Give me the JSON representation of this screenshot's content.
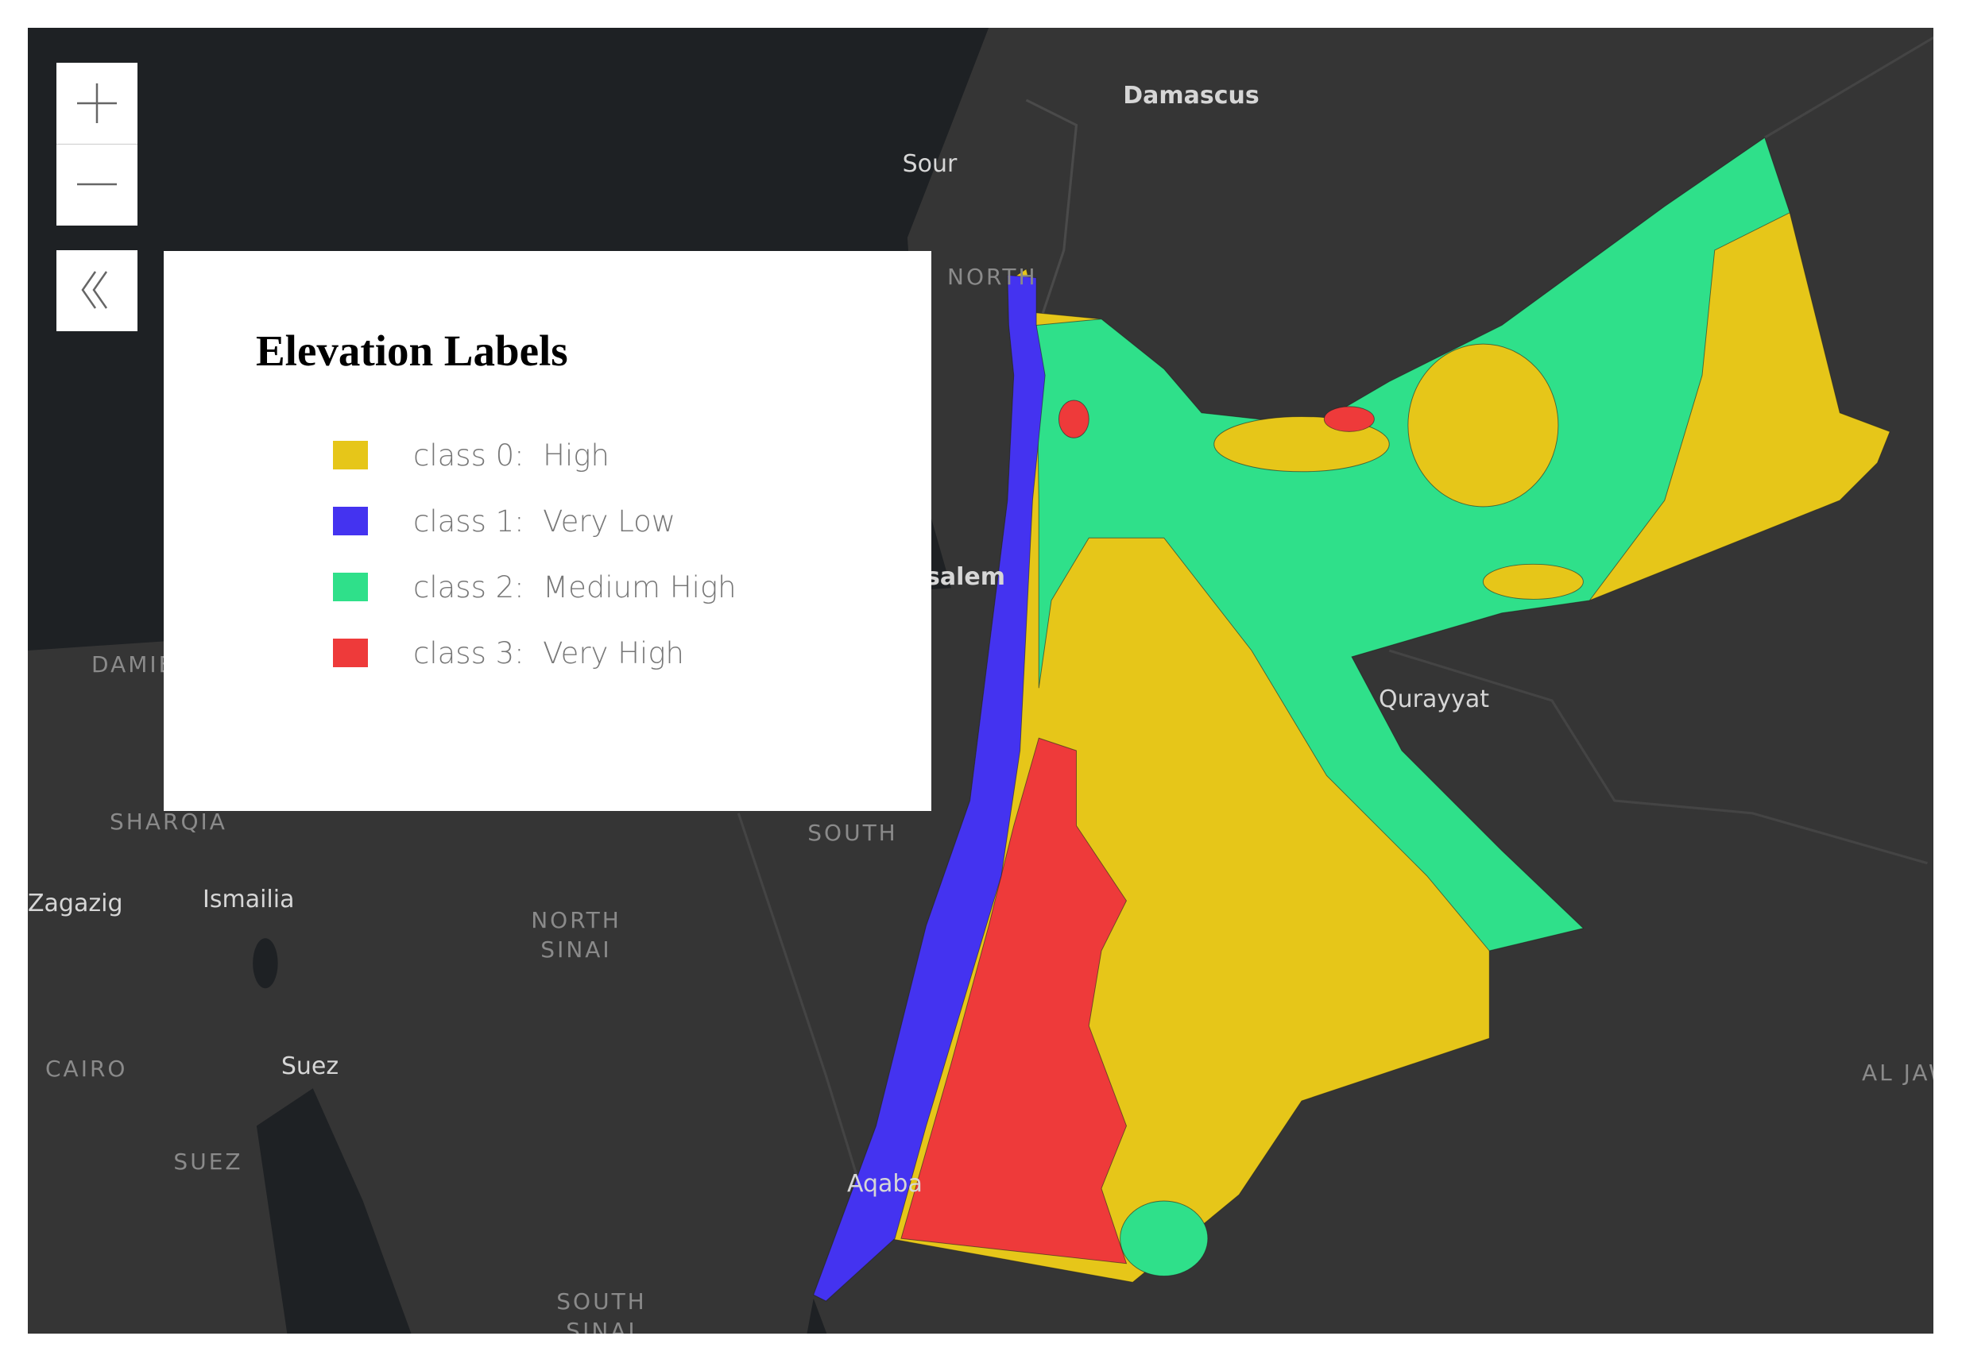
{
  "map_labels": [
    "Damascus",
    "Sour",
    "NORTH",
    "Jerusalem",
    "Qurayyat",
    "DAMIETTA",
    "SHARQIA",
    "Zagazig",
    "Ismailia",
    "NORTH",
    "SINAI",
    "CAIRO",
    "Suez",
    "SUEZ",
    "SOUTH",
    "Aqaba",
    "SOUTH",
    "SINAI",
    "AL JAWF"
  ],
  "legend": {
    "title": "Elevation Labels",
    "items": [
      {
        "label": "class 0:  High",
        "color": "#e6c619"
      },
      {
        "label": "class 1:  Very Low",
        "color": "#4433f0"
      },
      {
        "label": "class 2:  Medium High",
        "color": "#2fe08a"
      },
      {
        "label": "class 3:  Very High",
        "color": "#ee3a3a"
      }
    ]
  }
}
